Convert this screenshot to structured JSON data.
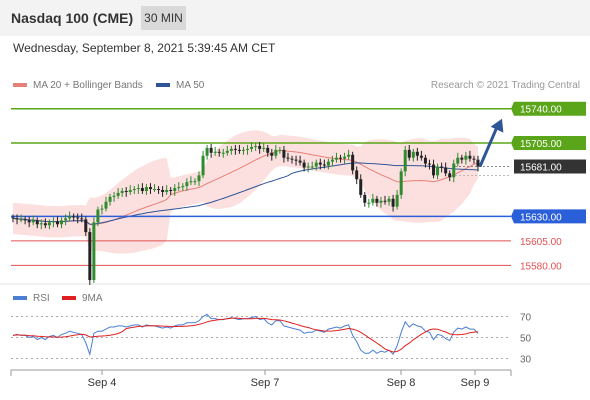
{
  "header": {
    "title": "Nasdaq 100 (CME)",
    "timeframe": "30 MIN",
    "datetime": "Wednesday, September 8, 2021 5:39:45 AM CET"
  },
  "legend": {
    "bb_label": "MA 20 + Bollinger Bands",
    "ma50_label": "MA 50",
    "credit": "Research © 2021 Trading Central",
    "rsi_label": "RSI",
    "rsi_ma_label": "9MA"
  },
  "colors": {
    "bb_band": "#fbd9d9",
    "ma20": "#e8807a",
    "ma50": "#2f5597",
    "up": "#2e8b2e",
    "down": "#222222",
    "resistance": "#5aa519",
    "support": "#2b5fd9",
    "target": "#e05050",
    "arrow": "#2f5597",
    "rsi": "#4a7fd4",
    "rsi_ma": "#e02020",
    "current": "#333333"
  },
  "chart_data": {
    "type": "candlestick",
    "yrange": [
      15562,
      15752
    ],
    "x_ticks": [
      "Sep 4",
      "Sep 7",
      "Sep 8",
      "Sep 9"
    ],
    "levels": [
      {
        "value": 15740,
        "label": "15740.00",
        "kind": "resistance"
      },
      {
        "value": 15705,
        "label": "15705.00",
        "kind": "resistance"
      },
      {
        "value": 15681,
        "label": "15681.00",
        "kind": "current"
      },
      {
        "value": 15630,
        "label": "15630.00",
        "kind": "support"
      },
      {
        "value": 15605,
        "label": "15605.00",
        "kind": "target"
      },
      {
        "value": 15580,
        "label": "15580.00",
        "kind": "target"
      }
    ],
    "close": [
      15628,
      15627,
      15627,
      15626,
      15624,
      15626,
      15622,
      15623,
      15621,
      15624,
      15625,
      15622,
      15626,
      15628,
      15630,
      15629,
      15628,
      15627,
      15614,
      15565,
      15624,
      15637,
      15638,
      15645,
      15650,
      15651,
      15654,
      15656,
      15655,
      15657,
      15658,
      15659,
      15656,
      15660,
      15658,
      15658,
      15657,
      15655,
      15657,
      15656,
      15659,
      15660,
      15661,
      15665,
      15666,
      15666,
      15672,
      15692,
      15700,
      15695,
      15696,
      15695,
      15695,
      15697,
      15699,
      15698,
      15697,
      15698,
      15699,
      15701,
      15702,
      15699,
      15700,
      15695,
      15692,
      15698,
      15698,
      15690,
      15689,
      15688,
      15687,
      15685,
      15680,
      15681,
      15681,
      15685,
      15683,
      15682,
      15686,
      15688,
      15690,
      15689,
      15691,
      15693,
      15677,
      15668,
      15652,
      15644,
      15644,
      15648,
      15644,
      15646,
      15645,
      15648,
      15640,
      15652,
      15676,
      15698,
      15690,
      15696,
      15692,
      15690,
      15684,
      15683,
      15672,
      15681,
      15680,
      15674,
      15670,
      15684,
      15690,
      15688,
      15692,
      15689,
      15688,
      15681
    ],
    "rsi": [
      52,
      53,
      52,
      52,
      50,
      51,
      48,
      50,
      48,
      51,
      52,
      50,
      53,
      54,
      56,
      55,
      54,
      53,
      45,
      34,
      54,
      56,
      56,
      58,
      60,
      60,
      61,
      61,
      60,
      61,
      62,
      62,
      60,
      62,
      61,
      61,
      60,
      59,
      60,
      59,
      61,
      62,
      62,
      64,
      64,
      64,
      66,
      70,
      72,
      68,
      68,
      67,
      67,
      68,
      69,
      68,
      67,
      68,
      68,
      69,
      70,
      67,
      68,
      64,
      62,
      66,
      66,
      61,
      60,
      59,
      58,
      57,
      54,
      55,
      55,
      57,
      56,
      55,
      58,
      59,
      60,
      59,
      61,
      62,
      52,
      46,
      38,
      35,
      35,
      38,
      35,
      37,
      36,
      38,
      34,
      42,
      55,
      65,
      60,
      63,
      61,
      60,
      56,
      55,
      48,
      53,
      52,
      49,
      47,
      55,
      59,
      58,
      60,
      58,
      58,
      54
    ],
    "rsi_ticks": [
      70,
      50,
      30
    ],
    "rsi_range": [
      20,
      80
    ]
  }
}
